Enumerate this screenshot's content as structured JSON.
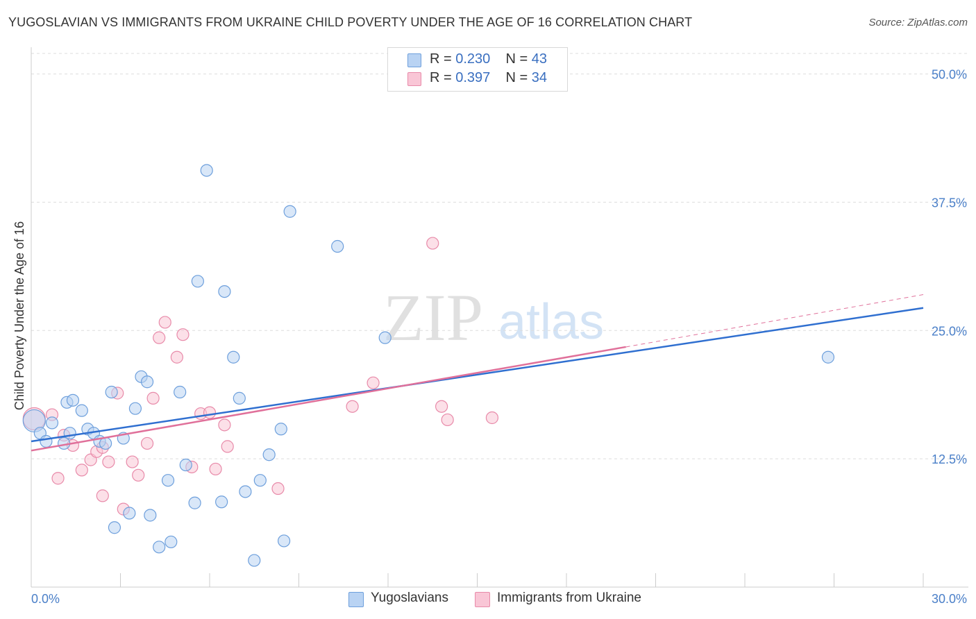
{
  "title": "YUGOSLAVIAN VS IMMIGRANTS FROM UKRAINE CHILD POVERTY UNDER THE AGE OF 16 CORRELATION CHART",
  "source": "Source: ZipAtlas.com",
  "watermark": {
    "zip": "ZIP",
    "atlas": "atlas"
  },
  "legend": {
    "rows": [
      {
        "r_label": "R =",
        "r_value": "0.230",
        "n_label": "N =",
        "n_value": "43"
      },
      {
        "r_label": "R =",
        "r_value": "0.397",
        "n_label": "N =",
        "n_value": "34"
      }
    ]
  },
  "bottom_legend": {
    "series1": "Yugoslavians",
    "series2": "Immigrants from Ukraine"
  },
  "colors": {
    "series1_fill": "#b9d3f3",
    "series1_stroke": "#6d9fdc",
    "series1_line": "#2f6fd0",
    "series2_fill": "#f9c6d6",
    "series2_stroke": "#e88aa9",
    "series2_line": "#e0709a",
    "tick_label": "#4a7fc8",
    "grid": "#dddddd"
  },
  "chart_data": {
    "type": "scatter",
    "title": "YUGOSLAVIAN VS IMMIGRANTS FROM UKRAINE CHILD POVERTY UNDER THE AGE OF 16 CORRELATION CHART",
    "xlabel": "",
    "ylabel": "Child Poverty Under the Age of 16",
    "xlim": [
      0,
      30
    ],
    "ylim": [
      0,
      52
    ],
    "x_tick_labels": [
      "0.0%",
      "30.0%"
    ],
    "y_ticks": [
      12.5,
      25.0,
      37.5,
      50.0
    ],
    "y_tick_labels": [
      "12.5%",
      "25.0%",
      "37.5%",
      "50.0%"
    ],
    "grid": true,
    "legend_position": "top-center",
    "series": [
      {
        "name": "Yugoslavians",
        "points": [
          [
            0.1,
            16.2
          ],
          [
            0.3,
            15.0
          ],
          [
            0.5,
            14.2
          ],
          [
            0.7,
            16.0
          ],
          [
            1.1,
            14.0
          ],
          [
            1.2,
            18.0
          ],
          [
            1.3,
            15.0
          ],
          [
            1.4,
            18.2
          ],
          [
            1.7,
            17.2
          ],
          [
            1.9,
            15.4
          ],
          [
            2.1,
            15.0
          ],
          [
            2.3,
            14.2
          ],
          [
            2.5,
            14.0
          ],
          [
            2.7,
            19.0
          ],
          [
            2.8,
            5.8
          ],
          [
            3.1,
            14.5
          ],
          [
            3.3,
            7.2
          ],
          [
            3.5,
            17.4
          ],
          [
            3.7,
            20.5
          ],
          [
            3.9,
            20.0
          ],
          [
            4.0,
            7.0
          ],
          [
            4.3,
            3.9
          ],
          [
            4.6,
            10.4
          ],
          [
            4.7,
            4.4
          ],
          [
            5.0,
            19.0
          ],
          [
            5.2,
            11.9
          ],
          [
            5.5,
            8.2
          ],
          [
            5.6,
            29.8
          ],
          [
            5.9,
            40.6
          ],
          [
            6.4,
            8.3
          ],
          [
            6.5,
            28.8
          ],
          [
            6.8,
            22.4
          ],
          [
            7.0,
            18.4
          ],
          [
            7.2,
            9.3
          ],
          [
            7.5,
            2.6
          ],
          [
            7.7,
            10.4
          ],
          [
            8.0,
            12.9
          ],
          [
            8.4,
            15.4
          ],
          [
            8.5,
            4.5
          ],
          [
            8.7,
            36.6
          ],
          [
            10.3,
            33.2
          ],
          [
            11.9,
            24.3
          ],
          [
            26.8,
            22.4
          ]
        ],
        "trend": {
          "x": [
            0,
            30
          ],
          "y": [
            14.2,
            27.2
          ]
        }
      },
      {
        "name": "Immigrants from Ukraine",
        "points": [
          [
            0.1,
            16.4
          ],
          [
            0.7,
            16.8
          ],
          [
            0.9,
            10.6
          ],
          [
            1.1,
            14.8
          ],
          [
            1.4,
            13.8
          ],
          [
            1.7,
            11.4
          ],
          [
            2.0,
            12.4
          ],
          [
            2.2,
            13.2
          ],
          [
            2.4,
            13.6
          ],
          [
            2.4,
            8.9
          ],
          [
            2.6,
            12.2
          ],
          [
            2.9,
            18.9
          ],
          [
            3.1,
            7.6
          ],
          [
            3.4,
            12.2
          ],
          [
            3.6,
            10.9
          ],
          [
            3.9,
            14.0
          ],
          [
            4.1,
            18.4
          ],
          [
            4.3,
            24.3
          ],
          [
            4.5,
            25.8
          ],
          [
            4.9,
            22.4
          ],
          [
            5.1,
            24.6
          ],
          [
            5.4,
            11.7
          ],
          [
            5.7,
            16.9
          ],
          [
            6.0,
            17.0
          ],
          [
            6.2,
            11.5
          ],
          [
            6.5,
            15.8
          ],
          [
            6.6,
            13.7
          ],
          [
            8.3,
            9.6
          ],
          [
            10.8,
            17.6
          ],
          [
            11.5,
            19.9
          ],
          [
            13.5,
            33.5
          ],
          [
            13.8,
            17.6
          ],
          [
            14.0,
            16.3
          ],
          [
            15.5,
            16.5
          ]
        ],
        "trend": {
          "x": [
            0,
            20
          ],
          "y": [
            13.3,
            23.4
          ]
        },
        "trend_extension": {
          "x": [
            20,
            30
          ],
          "y": [
            23.4,
            28.5
          ]
        }
      }
    ]
  }
}
